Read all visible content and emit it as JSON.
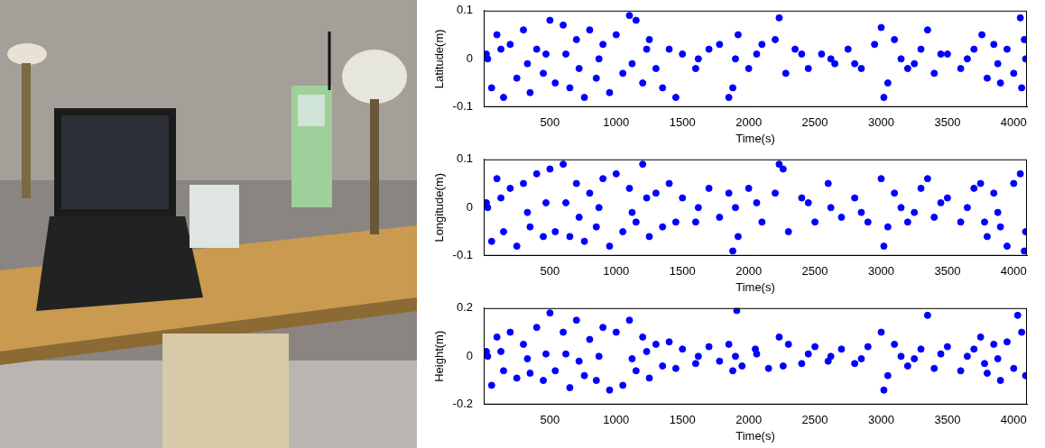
{
  "chart_data": [
    {
      "type": "scatter",
      "x_label": "Time(s)",
      "y_label": "Latitude(m)",
      "color": "#0000ff",
      "marker": "circle",
      "grid": false,
      "xlim": [
        0,
        4100
      ],
      "xticks": [
        500,
        1000,
        1500,
        2000,
        2500,
        3000,
        3500,
        4000
      ],
      "ylim": [
        -0.1,
        0.1
      ],
      "yticks": [
        -0.1,
        0,
        0.1
      ],
      "x": [
        20,
        60,
        100,
        150,
        200,
        250,
        300,
        350,
        400,
        450,
        500,
        540,
        600,
        650,
        700,
        760,
        800,
        850,
        900,
        950,
        1000,
        1050,
        1100,
        1150,
        1200,
        1250,
        1300,
        1350,
        1400,
        1450,
        1500,
        1600,
        1700,
        1780,
        1850,
        1880,
        1920,
        2000,
        2100,
        2200,
        2230,
        2280,
        2350,
        2450,
        2550,
        2650,
        2750,
        2850,
        2950,
        3000,
        3020,
        3050,
        3100,
        3200,
        3300,
        3350,
        3400,
        3500,
        3600,
        3700,
        3800,
        3850,
        3900,
        3950,
        4000,
        4050,
        4060,
        4080,
        4090,
        3760,
        30,
        130,
        330,
        620,
        870,
        1120,
        1620,
        2060,
        2620,
        3150,
        3450,
        3650,
        3880,
        2400,
        1900,
        2800,
        720,
        1230,
        470,
        3250
      ],
      "values": [
        0.01,
        -0.06,
        0.05,
        -0.08,
        0.03,
        -0.04,
        0.06,
        -0.07,
        0.02,
        -0.03,
        0.08,
        -0.05,
        0.07,
        -0.06,
        0.04,
        -0.08,
        0.06,
        -0.04,
        0.03,
        -0.07,
        0.05,
        -0.03,
        0.09,
        0.08,
        -0.05,
        0.04,
        -0.02,
        -0.06,
        0.02,
        -0.08,
        0.01,
        -0.02,
        0.02,
        0.03,
        -0.08,
        -0.06,
        0.05,
        -0.02,
        0.03,
        0.04,
        0.085,
        -0.03,
        0.02,
        -0.02,
        0.01,
        -0.01,
        0.02,
        -0.02,
        0.03,
        0.065,
        -0.08,
        -0.05,
        0.04,
        -0.02,
        0.02,
        0.06,
        -0.03,
        0.01,
        -0.02,
        0.02,
        -0.04,
        0.03,
        -0.05,
        0.02,
        -0.03,
        0.085,
        -0.06,
        0.04,
        0,
        0.05,
        0,
        0.02,
        -0.01,
        0.01,
        0,
        -0.01,
        0,
        0.01,
        0,
        0,
        0.01,
        0,
        -0.01,
        0.01,
        0,
        -0.01,
        -0.02,
        0.02,
        0.01,
        -0.01
      ]
    },
    {
      "type": "scatter",
      "x_label": "Time(s)",
      "y_label": "Longitude(m)",
      "color": "#0000ff",
      "marker": "circle",
      "grid": false,
      "xlim": [
        0,
        4100
      ],
      "xticks": [
        500,
        1000,
        1500,
        2000,
        2500,
        3000,
        3500,
        4000
      ],
      "ylim": [
        -0.1,
        0.1
      ],
      "yticks": [
        -0.1,
        0,
        0.1
      ],
      "x": [
        20,
        60,
        100,
        150,
        200,
        250,
        300,
        350,
        400,
        450,
        500,
        540,
        600,
        650,
        700,
        760,
        800,
        850,
        900,
        950,
        1000,
        1050,
        1100,
        1150,
        1200,
        1250,
        1300,
        1350,
        1400,
        1450,
        1500,
        1600,
        1700,
        1780,
        1850,
        1880,
        1920,
        2000,
        2100,
        2200,
        2230,
        2260,
        2300,
        2400,
        2500,
        2600,
        2700,
        2800,
        2900,
        3000,
        3020,
        3050,
        3100,
        3200,
        3300,
        3350,
        3400,
        3500,
        3600,
        3700,
        3750,
        3800,
        3850,
        3900,
        3950,
        4000,
        4050,
        4080,
        4090,
        3780,
        30,
        130,
        330,
        620,
        870,
        1120,
        1620,
        2060,
        2620,
        3150,
        3450,
        3650,
        3880,
        2450,
        1900,
        2850,
        720,
        1230,
        470,
        3250
      ],
      "values": [
        0.01,
        -0.07,
        0.06,
        -0.05,
        0.04,
        -0.08,
        0.05,
        -0.04,
        0.07,
        -0.06,
        0.08,
        -0.05,
        0.09,
        -0.06,
        0.05,
        -0.07,
        0.03,
        -0.04,
        0.06,
        -0.08,
        0.07,
        -0.05,
        0.04,
        -0.03,
        0.09,
        -0.06,
        0.03,
        -0.04,
        0.05,
        -0.03,
        0.02,
        -0.03,
        0.04,
        -0.02,
        0.03,
        -0.09,
        -0.06,
        0.04,
        -0.03,
        0.03,
        0.09,
        0.08,
        -0.05,
        0.02,
        -0.03,
        0.05,
        -0.02,
        0.02,
        -0.03,
        0.06,
        -0.08,
        -0.04,
        0.03,
        -0.03,
        0.04,
        0.06,
        -0.02,
        0.02,
        -0.03,
        0.04,
        0.05,
        -0.06,
        0.03,
        -0.04,
        -0.08,
        0.05,
        0.07,
        -0.09,
        -0.05,
        -0.03,
        0,
        0.02,
        -0.01,
        0.01,
        0,
        -0.01,
        0,
        0.01,
        0,
        0,
        0.01,
        0,
        -0.01,
        0.01,
        0,
        -0.01,
        -0.02,
        0.02,
        0.01,
        -0.01
      ]
    },
    {
      "type": "scatter",
      "x_label": "Time(s)",
      "y_label": "Height(m)",
      "color": "#0000ff",
      "marker": "circle",
      "grid": false,
      "xlim": [
        0,
        4100
      ],
      "xticks": [
        500,
        1000,
        1500,
        2000,
        2500,
        3000,
        3500,
        4000
      ],
      "ylim": [
        -0.2,
        0.2
      ],
      "yticks": [
        -0.2,
        0,
        0.2
      ],
      "x": [
        20,
        60,
        100,
        150,
        200,
        250,
        300,
        350,
        400,
        450,
        500,
        540,
        600,
        650,
        700,
        760,
        800,
        850,
        900,
        950,
        1000,
        1050,
        1100,
        1150,
        1200,
        1250,
        1300,
        1350,
        1400,
        1450,
        1500,
        1600,
        1700,
        1780,
        1850,
        1880,
        1910,
        1950,
        2050,
        2150,
        2230,
        2260,
        2300,
        2400,
        2500,
        2600,
        2700,
        2800,
        2900,
        3000,
        3020,
        3050,
        3100,
        3200,
        3300,
        3350,
        3400,
        3500,
        3600,
        3700,
        3750,
        3800,
        3850,
        3900,
        3950,
        4000,
        4030,
        4060,
        4090,
        3780,
        30,
        130,
        330,
        620,
        870,
        1120,
        1620,
        2060,
        2620,
        3150,
        3450,
        3650,
        3880,
        2450,
        1900,
        2850,
        720,
        1230,
        470,
        3250
      ],
      "values": [
        0.02,
        -0.12,
        0.08,
        -0.06,
        0.1,
        -0.09,
        0.05,
        -0.07,
        0.12,
        -0.1,
        0.18,
        -0.06,
        0.1,
        -0.13,
        0.15,
        -0.08,
        0.07,
        -0.1,
        0.12,
        -0.14,
        0.1,
        -0.12,
        0.15,
        -0.06,
        0.08,
        -0.09,
        0.05,
        -0.04,
        0.06,
        -0.05,
        0.03,
        -0.03,
        0.04,
        -0.02,
        0.05,
        -0.06,
        0.19,
        -0.04,
        0.03,
        -0.05,
        0.08,
        -0.04,
        0.05,
        -0.03,
        0.04,
        -0.02,
        0.03,
        -0.03,
        0.04,
        0.1,
        -0.14,
        -0.08,
        0.05,
        -0.04,
        0.03,
        0.17,
        -0.05,
        0.04,
        -0.06,
        0.03,
        0.08,
        -0.07,
        0.05,
        -0.1,
        0.06,
        -0.05,
        0.17,
        0.1,
        -0.08,
        -0.03,
        0,
        0.02,
        -0.01,
        0.01,
        0,
        -0.01,
        0,
        0.01,
        0,
        0,
        0.01,
        0,
        -0.01,
        0.01,
        0,
        -0.01,
        -0.02,
        0.02,
        0.01,
        -0.01
      ]
    }
  ]
}
